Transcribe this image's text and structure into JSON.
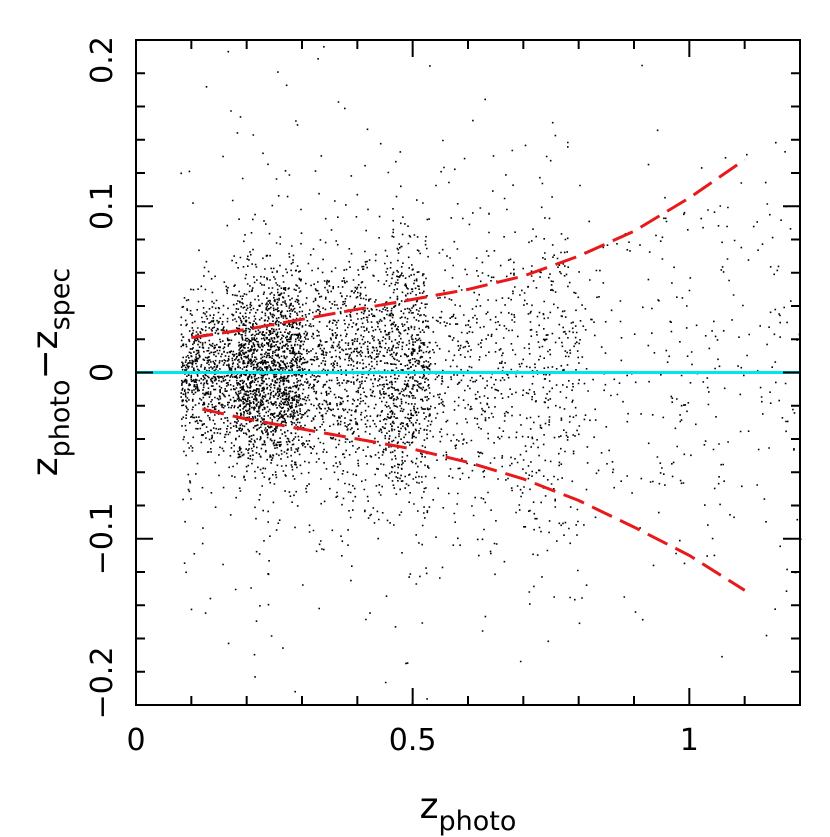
{
  "chart_data": {
    "type": "scatter",
    "title": "",
    "xlabel": {
      "main": "z",
      "sub": "photo"
    },
    "ylabel": {
      "main1": "z",
      "sub1": "photo",
      "minus": "−",
      "main2": "z",
      "sub2": "spec"
    },
    "xlim": [
      0,
      1.2
    ],
    "ylim": [
      -0.2,
      0.2
    ],
    "x_ticks": [
      {
        "value": 0,
        "label": "0"
      },
      {
        "value": 0.5,
        "label": "0.5"
      },
      {
        "value": 1,
        "label": "1"
      }
    ],
    "y_ticks": [
      {
        "value": -0.2,
        "label": "−0.2"
      },
      {
        "value": -0.1,
        "label": "−0.1"
      },
      {
        "value": 0,
        "label": "0"
      },
      {
        "value": 0.1,
        "label": "0.1"
      },
      {
        "value": 0.2,
        "label": "0.2"
      }
    ],
    "grid": false,
    "legend": "none",
    "reference_line": {
      "y": 0,
      "color": "#00e5ee"
    },
    "scatter": {
      "color": "#000000",
      "n_points": 5500,
      "description_note": "density of galaxies; concentrated at z_photo 0.1-0.5 near zero offset",
      "seed": 12345
    },
    "series": [
      {
        "name": "upper",
        "color": "#e8181b",
        "style": "dashed",
        "x": [
          0.1,
          0.2,
          0.3,
          0.4,
          0.5,
          0.6,
          0.7,
          0.8,
          0.9,
          1.0,
          1.1
        ],
        "y": [
          0.021,
          0.026,
          0.032,
          0.038,
          0.044,
          0.05,
          0.058,
          0.07,
          0.085,
          0.105,
          0.128
        ]
      },
      {
        "name": "lower",
        "color": "#e8181b",
        "style": "dashed",
        "x": [
          0.12,
          0.2,
          0.3,
          0.4,
          0.5,
          0.6,
          0.7,
          0.8,
          0.9,
          1.0,
          1.1
        ],
        "y": [
          -0.022,
          -0.028,
          -0.034,
          -0.04,
          -0.046,
          -0.054,
          -0.064,
          -0.077,
          -0.093,
          -0.11,
          -0.131
        ]
      }
    ]
  }
}
